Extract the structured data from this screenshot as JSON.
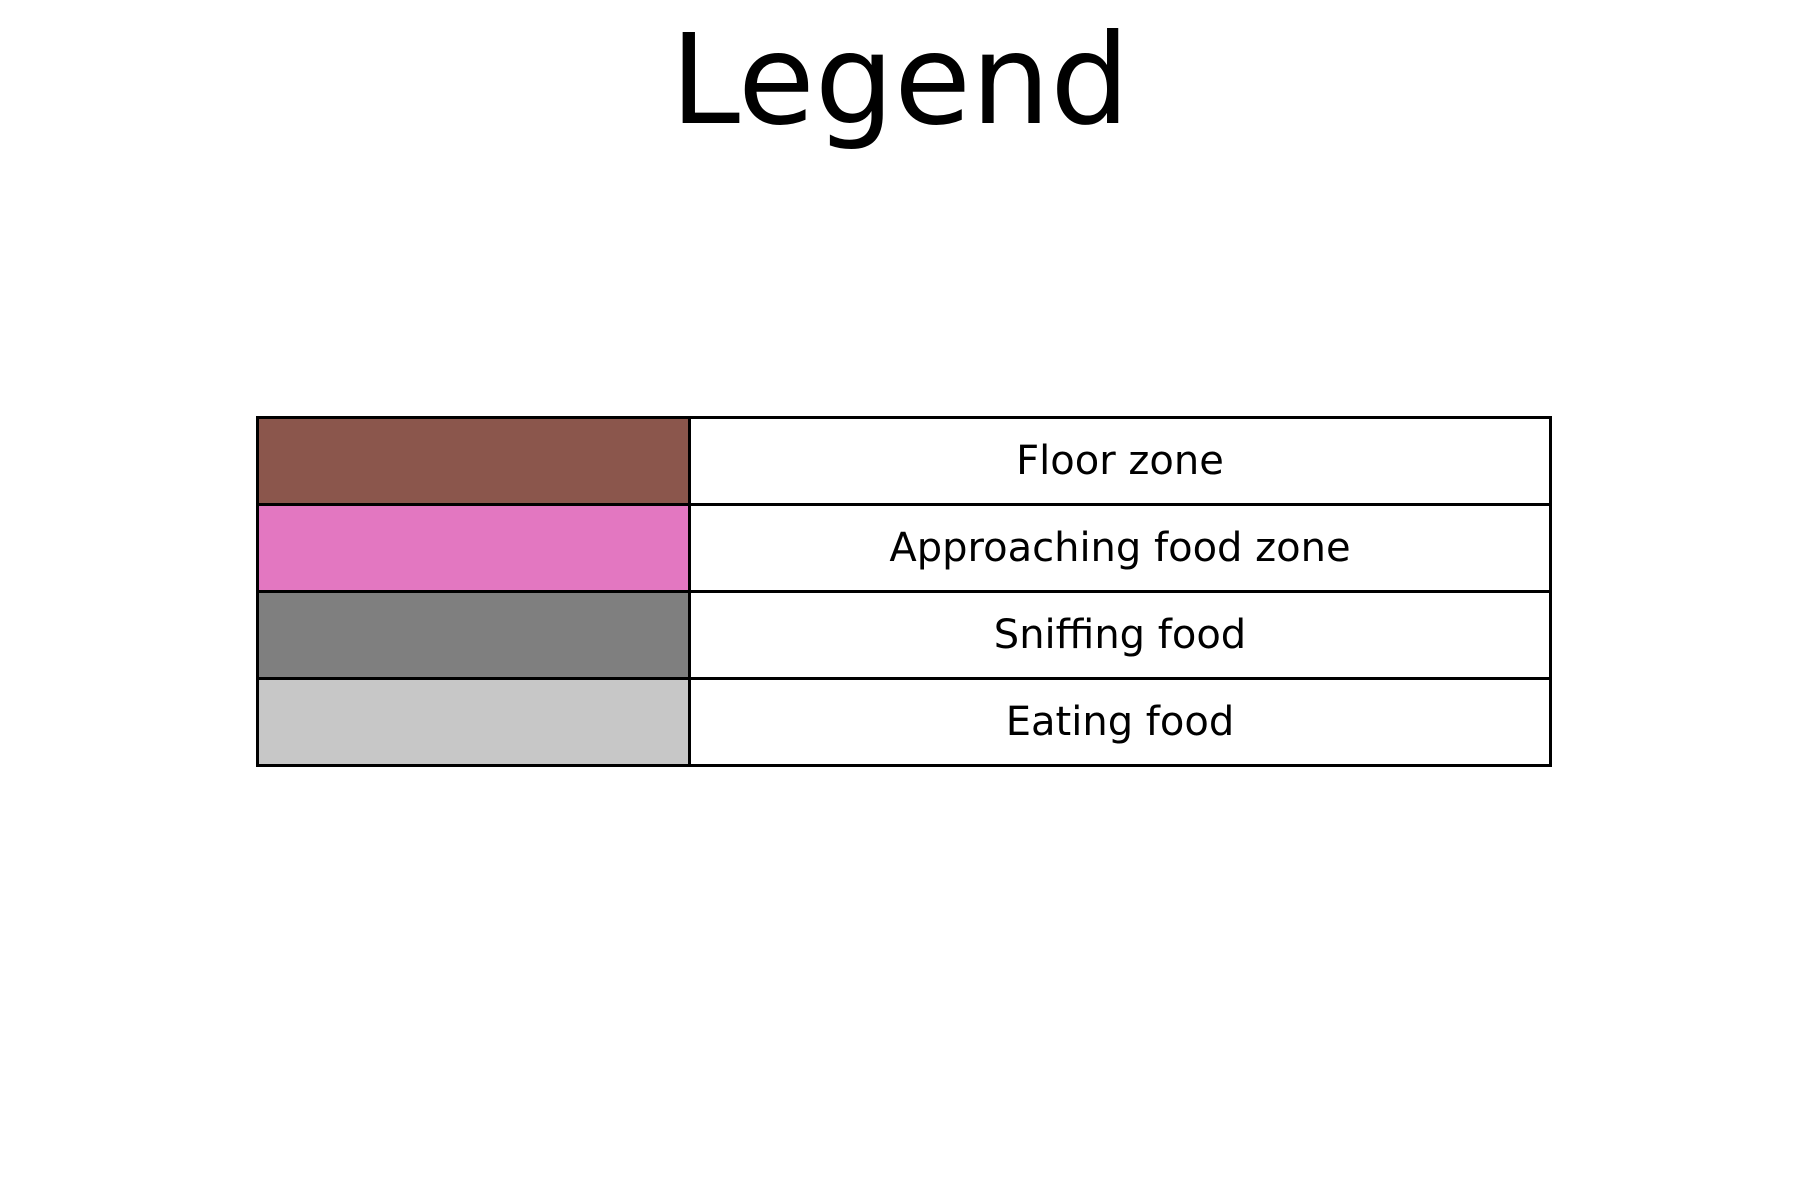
{
  "chart_data": {
    "type": "table",
    "title": "Legend",
    "entries": [
      {
        "label": "Floor zone",
        "color": "#8b564c"
      },
      {
        "label": "Approaching food zone",
        "color": "#e377c1"
      },
      {
        "label": "Sniffing food",
        "color": "#7f7f7f"
      },
      {
        "label": "Eating food",
        "color": "#c7c7c7"
      }
    ]
  }
}
